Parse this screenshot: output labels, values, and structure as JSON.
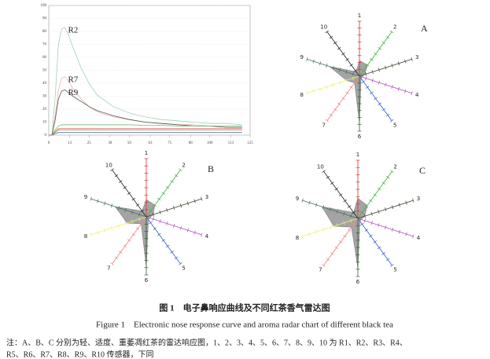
{
  "chart_data": [
    {
      "type": "line",
      "x": [
        0,
        2,
        4,
        6,
        8,
        10,
        12,
        15,
        20,
        25,
        30,
        40,
        50,
        60,
        70,
        80,
        90,
        100,
        110,
        120
      ],
      "xlim": [
        0,
        125
      ],
      "xticks": [
        0,
        13,
        25,
        38,
        50,
        63,
        75,
        88,
        100,
        113,
        125
      ],
      "ylim": [
        0,
        100
      ],
      "yticks": [
        0,
        10,
        20,
        30,
        40,
        50,
        60,
        70,
        80,
        90,
        100
      ],
      "grid": true,
      "series": [
        {
          "name": "R2",
          "color": "#9fd4b4",
          "values": [
            0,
            0,
            30,
            70,
            82,
            83,
            78,
            68,
            52,
            40,
            31,
            22,
            17,
            14,
            12,
            11,
            10,
            9,
            9,
            8
          ]
        },
        {
          "name": "R7",
          "color": "#efb2b2",
          "values": [
            0,
            0,
            15,
            35,
            44,
            45,
            42,
            36,
            28,
            22,
            18,
            14,
            12,
            10,
            9,
            8,
            8,
            7,
            7,
            7
          ]
        },
        {
          "name": "R9",
          "color": "#555555",
          "values": [
            0,
            0,
            12,
            28,
            34,
            35,
            33,
            30,
            26,
            22,
            19,
            15,
            12,
            10,
            9,
            8,
            7,
            7,
            6,
            6
          ]
        },
        {
          "color": "#6fbf6f",
          "values": [
            0,
            0,
            4,
            7,
            8,
            8,
            8,
            8,
            8,
            8,
            8,
            8,
            8,
            7.5,
            7.5,
            7,
            7,
            7,
            7,
            7
          ]
        },
        {
          "color": "#d46060",
          "values": [
            0,
            0,
            3,
            5,
            5,
            5,
            5,
            5,
            5,
            5,
            5,
            5,
            5,
            5,
            5,
            5,
            5,
            5,
            5,
            5
          ]
        },
        {
          "color": "#a0a040",
          "values": [
            0,
            0,
            2,
            4,
            4,
            4,
            4,
            4,
            4,
            4,
            4,
            4,
            4,
            4,
            4,
            4,
            4,
            4,
            4,
            4
          ]
        },
        {
          "color": "#5070c0",
          "values": [
            0,
            0,
            1,
            2,
            2,
            2,
            2,
            2,
            2,
            2,
            2,
            2,
            2,
            2,
            2,
            2,
            2,
            2,
            2,
            2
          ]
        }
      ]
    },
    {
      "type": "radar",
      "title": "A",
      "categories": [
        "1",
        "2",
        "3",
        "4",
        "5",
        "6",
        "7",
        "8",
        "9",
        "10"
      ],
      "axis_colors": [
        "#e03030",
        "#40b040",
        "#404030",
        "#b050c0",
        "#3060c0",
        "#306030",
        "#f08080",
        "#f0f070",
        "#407060",
        "#202020"
      ],
      "rlim": [
        0,
        8
      ],
      "rticks": [
        1,
        2,
        3,
        4,
        5,
        6,
        7,
        8
      ],
      "series": [
        {
          "color": "#9a9a9a",
          "values": [
            2.3,
            2.0,
            0.8,
            0.4,
            0.4,
            6.8,
            1.2,
            2.0,
            4.6,
            0.8
          ]
        }
      ]
    },
    {
      "type": "radar",
      "title": "B",
      "categories": [
        "1",
        "2",
        "3",
        "4",
        "5",
        "6",
        "7",
        "8",
        "9",
        "10"
      ],
      "axis_colors": [
        "#e03030",
        "#40b040",
        "#404030",
        "#b050c0",
        "#3060c0",
        "#306030",
        "#f08080",
        "#f0f070",
        "#407060",
        "#202020"
      ],
      "rlim": [
        0,
        8
      ],
      "rticks": [
        1,
        2,
        3,
        4,
        5,
        6,
        7,
        8
      ],
      "series": [
        {
          "color": "#9a9a9a",
          "values": [
            2.4,
            2.0,
            1.0,
            0.5,
            0.5,
            6.9,
            1.2,
            2.8,
            4.5,
            1.0
          ]
        }
      ]
    },
    {
      "type": "radar",
      "title": "C",
      "categories": [
        "1",
        "2",
        "3",
        "4",
        "5",
        "6",
        "7",
        "8",
        "9",
        "10"
      ],
      "axis_colors": [
        "#e03030",
        "#40b040",
        "#404030",
        "#b050c0",
        "#3060c0",
        "#306030",
        "#f08080",
        "#f0f070",
        "#407060",
        "#202020"
      ],
      "rlim": [
        0,
        8
      ],
      "rticks": [
        1,
        2,
        3,
        4,
        5,
        6,
        7,
        8
      ],
      "series": [
        {
          "color": "#9a9a9a",
          "values": [
            2.8,
            2.2,
            1.0,
            0.5,
            0.5,
            6.8,
            1.5,
            3.5,
            5.2,
            1.0
          ]
        }
      ]
    }
  ],
  "figure": {
    "title_cn": "图 1　电子鼻响应曲线及不同红茶香气雷达图",
    "title_en": "Figure 1　Electronic nose response curve and aroma radar chart of different black tea",
    "note": [
      "注：A、B、C 分别为轻、适度、重萎凋红茶的雷达响应图，1、2、3、4、5、6、7、8、9、10 为 R1、R2、R3、R4、",
      "R5、R6、R7、R8、R9、R10 传感器，下同"
    ]
  }
}
